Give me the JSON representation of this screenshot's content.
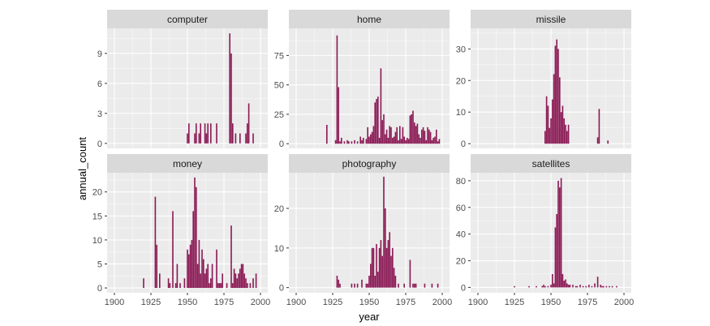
{
  "chart_data": {
    "type": "bar",
    "facets": "wrap",
    "xlabel": "year",
    "ylabel": "annual_count",
    "bar_color": "#8b1a55",
    "panel_color": "#ebebeb",
    "strip_color": "#d9d9d9",
    "xlim": [
      1895,
      2005
    ],
    "x_ticks": [
      1900,
      1925,
      1950,
      1975,
      2000
    ],
    "panels": [
      {
        "name": "computer",
        "ylim": [
          -0.5,
          11.5
        ],
        "y_ticks": [
          0,
          3,
          6,
          9
        ],
        "data": [
          [
            1950,
            1
          ],
          [
            1951,
            2
          ],
          [
            1955,
            1
          ],
          [
            1956,
            2
          ],
          [
            1958,
            1
          ],
          [
            1959,
            2
          ],
          [
            1962,
            2
          ],
          [
            1963,
            1
          ],
          [
            1964,
            2
          ],
          [
            1966,
            2
          ],
          [
            1970,
            2
          ],
          [
            1979,
            11
          ],
          [
            1980,
            9
          ],
          [
            1981,
            2
          ],
          [
            1983,
            1
          ],
          [
            1986,
            1
          ],
          [
            1990,
            1
          ],
          [
            1991,
            2
          ],
          [
            1992,
            4
          ],
          [
            1995,
            1
          ]
        ]
      },
      {
        "name": "home",
        "ylim": [
          -4,
          98
        ],
        "y_ticks": [
          0,
          25,
          50,
          75
        ],
        "data": [
          [
            1921,
            16
          ],
          [
            1927,
            3
          ],
          [
            1928,
            92
          ],
          [
            1929,
            48
          ],
          [
            1930,
            2
          ],
          [
            1931,
            5
          ],
          [
            1933,
            2
          ],
          [
            1935,
            3
          ],
          [
            1936,
            2
          ],
          [
            1938,
            2
          ],
          [
            1940,
            3
          ],
          [
            1942,
            2
          ],
          [
            1944,
            6
          ],
          [
            1945,
            3
          ],
          [
            1946,
            5
          ],
          [
            1948,
            4
          ],
          [
            1949,
            14
          ],
          [
            1950,
            6
          ],
          [
            1951,
            8
          ],
          [
            1952,
            10
          ],
          [
            1953,
            15
          ],
          [
            1954,
            35
          ],
          [
            1955,
            38
          ],
          [
            1956,
            40
          ],
          [
            1957,
            5
          ],
          [
            1958,
            64
          ],
          [
            1959,
            20
          ],
          [
            1960,
            25
          ],
          [
            1961,
            8
          ],
          [
            1962,
            12
          ],
          [
            1963,
            5
          ],
          [
            1964,
            15
          ],
          [
            1965,
            14
          ],
          [
            1966,
            5
          ],
          [
            1967,
            6
          ],
          [
            1968,
            10
          ],
          [
            1969,
            14
          ],
          [
            1970,
            3
          ],
          [
            1971,
            15
          ],
          [
            1972,
            4
          ],
          [
            1973,
            14
          ],
          [
            1974,
            6
          ],
          [
            1975,
            3
          ],
          [
            1976,
            5
          ],
          [
            1977,
            4
          ],
          [
            1978,
            24
          ],
          [
            1979,
            25
          ],
          [
            1980,
            28
          ],
          [
            1981,
            18
          ],
          [
            1982,
            15
          ],
          [
            1983,
            17
          ],
          [
            1984,
            8
          ],
          [
            1985,
            5
          ],
          [
            1986,
            12
          ],
          [
            1987,
            14
          ],
          [
            1988,
            11
          ],
          [
            1989,
            3
          ],
          [
            1990,
            14
          ],
          [
            1991,
            12
          ],
          [
            1992,
            10
          ],
          [
            1993,
            3
          ],
          [
            1994,
            5
          ],
          [
            1995,
            6
          ],
          [
            1996,
            12
          ],
          [
            1997,
            2
          ],
          [
            1998,
            4
          ]
        ]
      },
      {
        "name": "missile",
        "ylim": [
          -1.5,
          36.5
        ],
        "y_ticks": [
          0,
          10,
          20,
          30
        ],
        "data": [
          [
            1946,
            4
          ],
          [
            1947,
            15
          ],
          [
            1948,
            12
          ],
          [
            1949,
            5
          ],
          [
            1950,
            8
          ],
          [
            1951,
            14
          ],
          [
            1952,
            22
          ],
          [
            1953,
            31
          ],
          [
            1954,
            33
          ],
          [
            1955,
            30
          ],
          [
            1956,
            21
          ],
          [
            1957,
            10
          ],
          [
            1958,
            12
          ],
          [
            1959,
            8
          ],
          [
            1960,
            6
          ],
          [
            1961,
            4
          ],
          [
            1962,
            6
          ],
          [
            1982,
            2
          ],
          [
            1983,
            11
          ],
          [
            1989,
            1
          ]
        ]
      },
      {
        "name": "money",
        "ylim": [
          -1,
          24
        ],
        "y_ticks": [
          0,
          5,
          10,
          15,
          20
        ],
        "data": [
          [
            1920,
            2
          ],
          [
            1928,
            19
          ],
          [
            1929,
            9
          ],
          [
            1931,
            3
          ],
          [
            1937,
            2
          ],
          [
            1938,
            1
          ],
          [
            1940,
            16
          ],
          [
            1942,
            1
          ],
          [
            1943,
            5
          ],
          [
            1945,
            1
          ],
          [
            1948,
            2
          ],
          [
            1950,
            8
          ],
          [
            1951,
            7
          ],
          [
            1952,
            9
          ],
          [
            1953,
            10
          ],
          [
            1954,
            16
          ],
          [
            1955,
            23
          ],
          [
            1956,
            21
          ],
          [
            1957,
            5
          ],
          [
            1958,
            10
          ],
          [
            1959,
            3
          ],
          [
            1960,
            8
          ],
          [
            1961,
            6
          ],
          [
            1962,
            3
          ],
          [
            1963,
            4
          ],
          [
            1964,
            5
          ],
          [
            1965,
            1
          ],
          [
            1966,
            2
          ],
          [
            1967,
            5
          ],
          [
            1970,
            8
          ],
          [
            1971,
            1
          ],
          [
            1972,
            1
          ],
          [
            1973,
            1
          ],
          [
            1974,
            3
          ],
          [
            1977,
            1
          ],
          [
            1980,
            13
          ],
          [
            1981,
            1
          ],
          [
            1982,
            4
          ],
          [
            1983,
            3
          ],
          [
            1984,
            2
          ],
          [
            1985,
            3
          ],
          [
            1986,
            4
          ],
          [
            1987,
            5
          ],
          [
            1988,
            5
          ],
          [
            1989,
            3
          ],
          [
            1990,
            2
          ],
          [
            1991,
            1
          ],
          [
            1993,
            1
          ],
          [
            1995,
            2
          ],
          [
            1997,
            3
          ]
        ]
      },
      {
        "name": "photography",
        "ylim": [
          -1.3,
          29
        ],
        "y_ticks": [
          0,
          10,
          20
        ],
        "data": [
          [
            1928,
            3
          ],
          [
            1929,
            2
          ],
          [
            1930,
            1
          ],
          [
            1938,
            1
          ],
          [
            1940,
            1
          ],
          [
            1942,
            1
          ],
          [
            1945,
            2
          ],
          [
            1948,
            1
          ],
          [
            1949,
            1
          ],
          [
            1950,
            3
          ],
          [
            1951,
            6
          ],
          [
            1952,
            10
          ],
          [
            1953,
            10
          ],
          [
            1954,
            3
          ],
          [
            1955,
            11
          ],
          [
            1956,
            4
          ],
          [
            1957,
            10
          ],
          [
            1958,
            12
          ],
          [
            1959,
            8
          ],
          [
            1960,
            28
          ],
          [
            1961,
            20
          ],
          [
            1962,
            10
          ],
          [
            1963,
            12
          ],
          [
            1964,
            14
          ],
          [
            1965,
            8
          ],
          [
            1966,
            10
          ],
          [
            1967,
            5
          ],
          [
            1968,
            3
          ],
          [
            1970,
            1
          ],
          [
            1974,
            1
          ],
          [
            1978,
            7
          ],
          [
            1980,
            1
          ],
          [
            1981,
            1
          ],
          [
            1982,
            1
          ],
          [
            1988,
            1
          ],
          [
            1993,
            1
          ],
          [
            1997,
            1
          ]
        ]
      },
      {
        "name": "satellites",
        "ylim": [
          -4,
          86
        ],
        "y_ticks": [
          0,
          20,
          40,
          60,
          80
        ],
        "data": [
          [
            1925,
            1
          ],
          [
            1935,
            1
          ],
          [
            1940,
            1
          ],
          [
            1944,
            1
          ],
          [
            1945,
            2
          ],
          [
            1946,
            1
          ],
          [
            1948,
            1
          ],
          [
            1950,
            2
          ],
          [
            1951,
            10
          ],
          [
            1952,
            3
          ],
          [
            1953,
            45
          ],
          [
            1954,
            55
          ],
          [
            1955,
            80
          ],
          [
            1956,
            75
          ],
          [
            1957,
            82
          ],
          [
            1958,
            10
          ],
          [
            1959,
            5
          ],
          [
            1960,
            6
          ],
          [
            1961,
            3
          ],
          [
            1962,
            2
          ],
          [
            1963,
            2
          ],
          [
            1965,
            2
          ],
          [
            1967,
            1
          ],
          [
            1968,
            1
          ],
          [
            1970,
            2
          ],
          [
            1972,
            1
          ],
          [
            1974,
            1
          ],
          [
            1976,
            2
          ],
          [
            1978,
            1
          ],
          [
            1980,
            3
          ],
          [
            1982,
            8
          ],
          [
            1984,
            2
          ],
          [
            1985,
            1
          ],
          [
            1986,
            1
          ],
          [
            1988,
            1
          ],
          [
            1990,
            1
          ],
          [
            1992,
            1
          ],
          [
            1995,
            1
          ]
        ]
      }
    ]
  }
}
